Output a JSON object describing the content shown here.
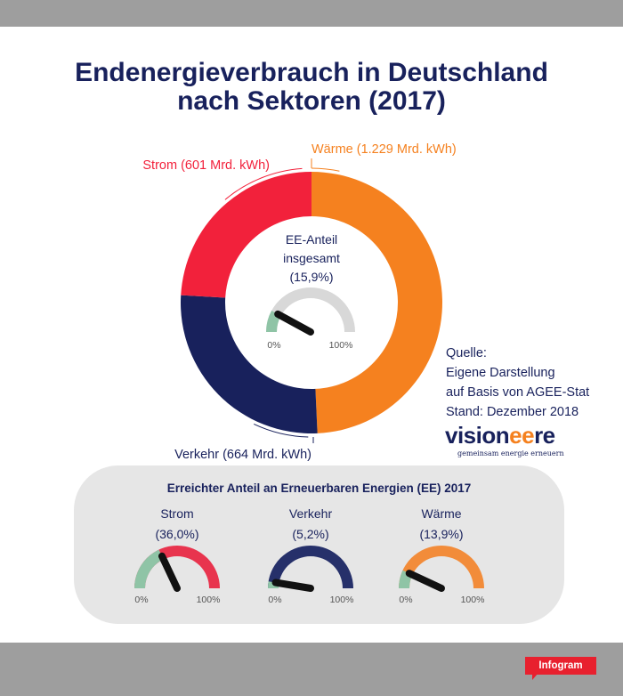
{
  "title_line1": "Endenergieverbrauch in Deutschland",
  "title_line2": "nach Sektoren (2017)",
  "chart_data": [
    {
      "type": "pie",
      "variant": "donut",
      "categories": [
        "Wärme (1.229 Mrd. kWh)",
        "Verkehr (664 Mrd. kWh)",
        "Strom (601 Mrd. kWh)"
      ],
      "values": [
        1229,
        664,
        601
      ],
      "colors": [
        "#f5811f",
        "#18215c",
        "#f2213b"
      ],
      "center_label_lines": [
        "EE-Anteil",
        "insgesamt",
        "(15,9%)"
      ],
      "gauge": {
        "value": 15.9,
        "min_label": "0%",
        "max_label": "100%"
      }
    },
    {
      "type": "gauge",
      "title": "Erreichter Anteil an Erneuerbaren Energien (EE) 2017",
      "items": [
        {
          "name": "Strom",
          "value_label": "(36,0%)",
          "value": 36.0,
          "color": "#e8344e",
          "min_label": "0%",
          "max_label": "100%"
        },
        {
          "name": "Verkehr",
          "value_label": "(5,2%)",
          "value": 5.2,
          "color": "#26306a",
          "min_label": "0%",
          "max_label": "100%"
        },
        {
          "name": "Wärme",
          "value_label": "(13,9%)",
          "value": 13.9,
          "color": "#f28c3a",
          "min_label": "0%",
          "max_label": "100%"
        }
      ]
    }
  ],
  "colors": {
    "ee_fill": "#8fc4a6",
    "gauge_track": "#d8d8d8",
    "needle": "#111111",
    "text_dark": "#18215c"
  },
  "source": {
    "lines": [
      "Quelle:",
      "Eigene Darstellung",
      "auf Basis von AGEE-Stat",
      "Stand: Dezember 2018"
    ]
  },
  "logo": {
    "part1": "vision",
    "part2": "ee",
    "part3": "re",
    "tagline": "gemeinsam energie erneuern"
  },
  "badge": "Infogram"
}
